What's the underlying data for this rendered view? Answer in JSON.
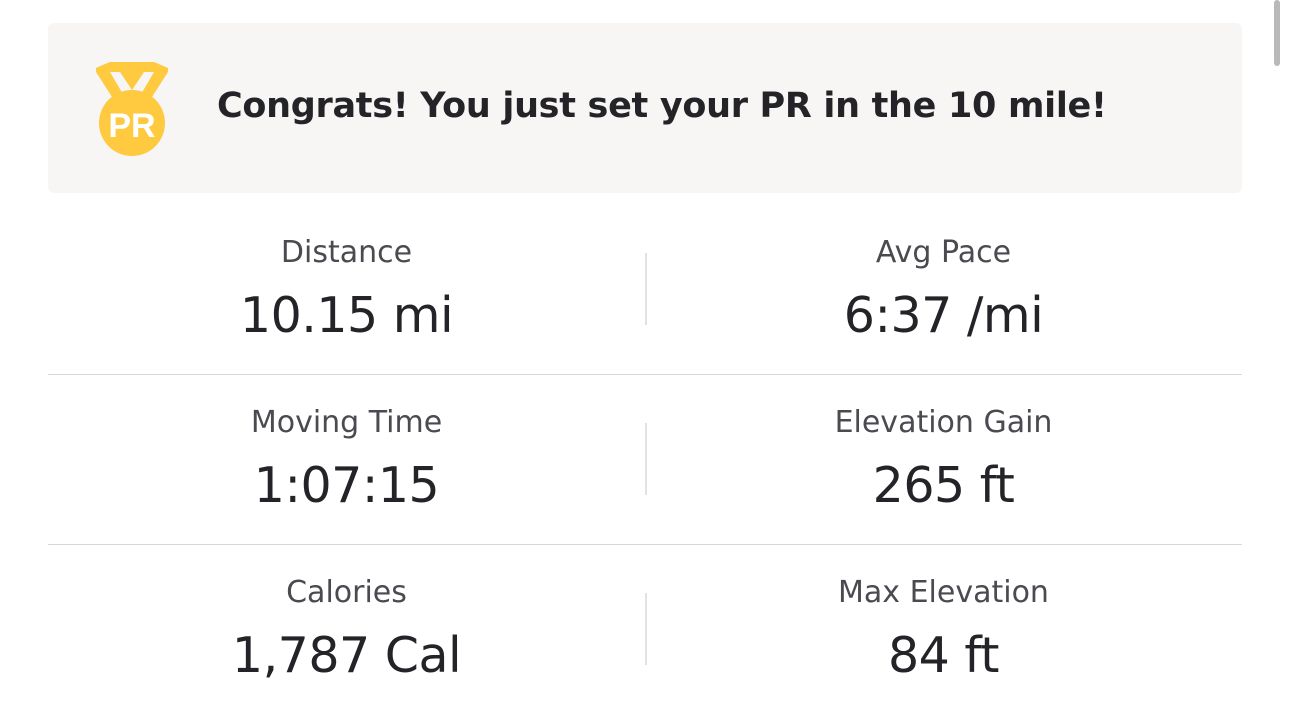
{
  "banner": {
    "icon": "pr-medal-icon",
    "icon_text": "PR",
    "message": "Congrats! You just set your PR in the 10 mile!",
    "accent_color": "#FFC940"
  },
  "stats": [
    {
      "left": {
        "label": "Distance",
        "value": "10.15 mi"
      },
      "right": {
        "label": "Avg Pace",
        "value": "6:37 /mi"
      }
    },
    {
      "left": {
        "label": "Moving Time",
        "value": "1:07:15"
      },
      "right": {
        "label": "Elevation Gain",
        "value": "265 ft"
      }
    },
    {
      "left": {
        "label": "Calories",
        "value": "1,787 Cal"
      },
      "right": {
        "label": "Max Elevation",
        "value": "84 ft"
      }
    }
  ]
}
